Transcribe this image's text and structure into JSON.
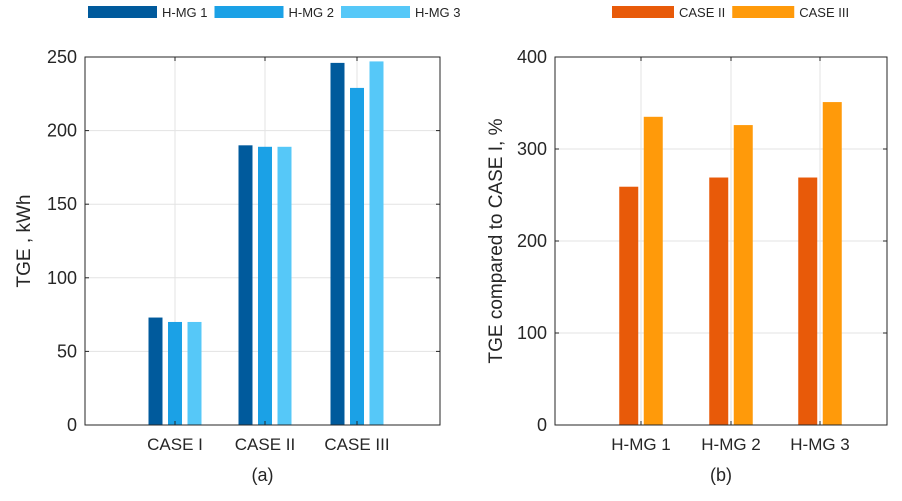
{
  "chart_data": [
    {
      "type": "bar",
      "xlabel": "(a)",
      "ylabel": "TGE , kWh",
      "categories": [
        "CASE I",
        "CASE II",
        "CASE III"
      ],
      "ylim": [
        0,
        250
      ],
      "yticks": [
        0,
        50,
        100,
        150,
        200,
        250
      ],
      "grid": true,
      "legend_position": "top",
      "series": [
        {
          "name": "H-MG 1",
          "color": "#005a9c",
          "values": [
            73,
            190,
            246
          ]
        },
        {
          "name": "H-MG 2",
          "color": "#1ba1e6",
          "values": [
            70,
            189,
            229
          ]
        },
        {
          "name": "H-MG 3",
          "color": "#56c8f8",
          "values": [
            70,
            189,
            247
          ]
        }
      ]
    },
    {
      "type": "bar",
      "xlabel": "(b)",
      "ylabel": "TGE compared to CASE I, %",
      "categories": [
        "H-MG 1",
        "H-MG 2",
        "H-MG 3"
      ],
      "ylim": [
        0,
        400
      ],
      "yticks": [
        0,
        100,
        200,
        300,
        400
      ],
      "grid": true,
      "legend_position": "top",
      "series": [
        {
          "name": "CASE II",
          "color": "#e85a09",
          "values": [
            259,
            269,
            269
          ]
        },
        {
          "name": "CASE III",
          "color": "#ff9a0a",
          "values": [
            335,
            326,
            351
          ]
        }
      ]
    }
  ]
}
